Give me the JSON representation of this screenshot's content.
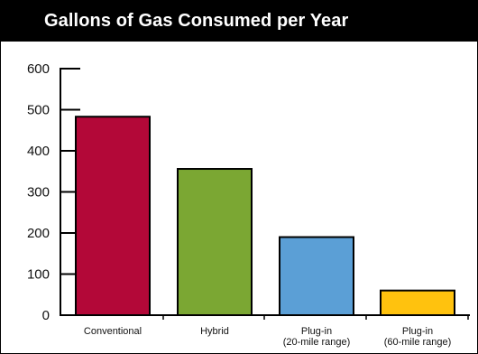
{
  "title": "Gallons of Gas Consumed per Year",
  "chart_data": {
    "type": "bar",
    "title": "Gallons of Gas Consumed per Year",
    "categories": [
      [
        "Conventional"
      ],
      [
        "Hybrid"
      ],
      [
        "Plug-in",
        "(20-mile range)"
      ],
      [
        "Plug-in",
        "(60-mile range)"
      ]
    ],
    "values": [
      483,
      356,
      190,
      60
    ],
    "colors": [
      "#B30838",
      "#7BA733",
      "#5B9FD6",
      "#FFC20E"
    ],
    "yticks": [
      0,
      100,
      200,
      300,
      400,
      500,
      600
    ],
    "ylim": [
      0,
      600
    ],
    "xlabel": "",
    "ylabel": "",
    "grid": false,
    "legend": "none"
  }
}
